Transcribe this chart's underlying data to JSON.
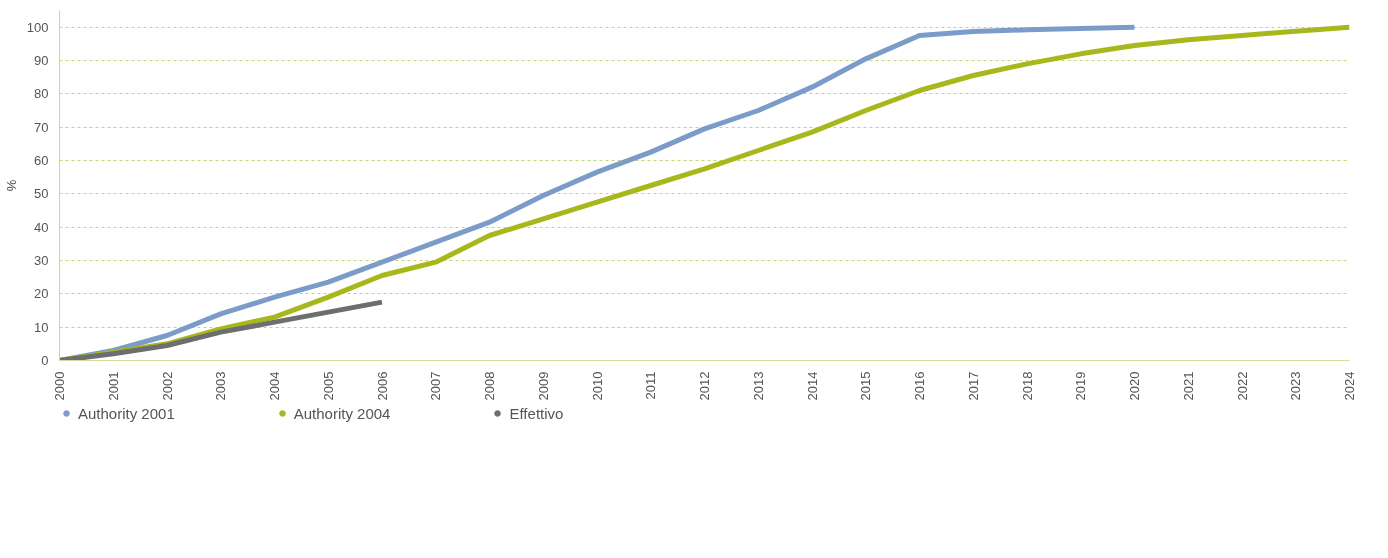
{
  "chart_data": {
    "type": "line",
    "ylabel": "%",
    "x": [
      2000,
      2001,
      2002,
      2003,
      2004,
      2005,
      2006,
      2007,
      2008,
      2009,
      2010,
      2011,
      2012,
      2013,
      2014,
      2015,
      2016,
      2017,
      2018,
      2019,
      2020,
      2021,
      2022,
      2023,
      2024
    ],
    "series": [
      {
        "name": "Authority 2001",
        "color": "#7b9cc8",
        "values": [
          0,
          3,
          7.5,
          14,
          19,
          23.5,
          29.5,
          35.5,
          41.5,
          49.5,
          56.5,
          62.5,
          69.5,
          75,
          82,
          90.5,
          97.5,
          98.7,
          99.2,
          99.6,
          100,
          null,
          null,
          null,
          null
        ]
      },
      {
        "name": "Authority 2004",
        "color": "#a8b81c",
        "values": [
          0,
          2.5,
          5,
          9.5,
          13,
          19,
          25.5,
          29.5,
          37.5,
          42.5,
          47.5,
          52.5,
          57.5,
          63,
          68.5,
          75,
          81,
          85.5,
          89,
          92,
          94.5,
          96.2,
          97.5,
          98.8,
          100
        ]
      },
      {
        "name": "Effettivo",
        "color": "#6d6e70",
        "values": [
          0,
          2,
          4.5,
          8.5,
          11.5,
          14.5,
          17.5,
          null,
          null,
          null,
          null,
          null,
          null,
          null,
          null,
          null,
          null,
          null,
          null,
          null,
          null,
          null,
          null,
          null,
          null
        ]
      }
    ],
    "xlim": [
      2000,
      2024
    ],
    "xticks": [
      2000,
      2001,
      2002,
      2003,
      2004,
      2005,
      2006,
      2007,
      2008,
      2009,
      2010,
      2011,
      2012,
      2013,
      2014,
      2015,
      2016,
      2017,
      2018,
      2019,
      2020,
      2021,
      2022,
      2023,
      2024
    ],
    "ylim": [
      0,
      105
    ],
    "yticks": [
      0,
      10,
      20,
      30,
      40,
      50,
      60,
      70,
      80,
      90,
      100
    ],
    "grid": "y",
    "legend": "bottom",
    "line_style": "solid"
  }
}
